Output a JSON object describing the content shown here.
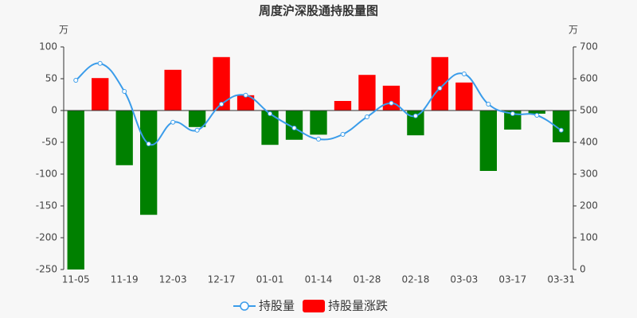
{
  "chart_data": {
    "type": "bar",
    "title": "周度沪深股通持股量图",
    "y_unit": "万",
    "y2_unit": "万",
    "categories": [
      "11-05",
      null,
      "11-19",
      null,
      "12-03",
      null,
      "12-17",
      null,
      "01-01",
      null,
      "01-14",
      null,
      "01-28",
      null,
      "02-18",
      null,
      "03-03",
      null,
      "03-17",
      null,
      "03-31"
    ],
    "series": [
      {
        "name": "持股量",
        "type": "line",
        "axis": "y2",
        "color": "#3a9cea",
        "values": [
          595,
          648,
          560,
          395,
          463,
          438,
          520,
          548,
          490,
          445,
          410,
          425,
          480,
          523,
          483,
          570,
          615,
          520,
          490,
          485,
          438
        ]
      },
      {
        "name": "持股量涨跌",
        "type": "bar",
        "axis": "y",
        "color": "#ff0000",
        "negative_color": "#008000",
        "values": [
          -250,
          51,
          -86,
          -164,
          64,
          -26,
          84,
          24,
          -54,
          -46,
          -38,
          15,
          56,
          39,
          -39,
          84,
          44,
          -95,
          -30,
          -5,
          -50
        ]
      }
    ],
    "ylim": [
      -250,
      100
    ],
    "yticks": [
      -250,
      -200,
      -150,
      -100,
      -50,
      0,
      50,
      100
    ],
    "y2lim": [
      0,
      700
    ],
    "y2ticks": [
      0,
      100,
      200,
      300,
      400,
      500,
      600,
      700
    ],
    "legend": "bottom"
  }
}
